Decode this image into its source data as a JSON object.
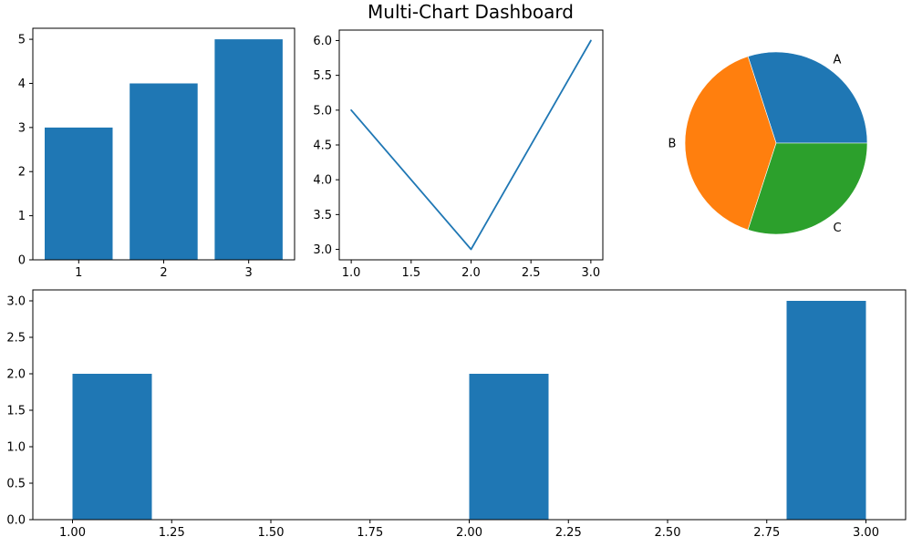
{
  "title": "Multi-Chart Dashboard",
  "colors": {
    "series_blue": "#1f77b4",
    "series_orange": "#ff7f0e",
    "series_green": "#2ca02c",
    "axis": "#000000",
    "background": "#ffffff"
  },
  "chart_data": [
    {
      "id": "bar-chart",
      "type": "bar",
      "categories": [
        1,
        2,
        3
      ],
      "values": [
        3,
        4,
        5
      ],
      "bar_width": 0.8,
      "color": "#1f77b4",
      "xlim": [
        0.46,
        3.54
      ],
      "ylim": [
        0,
        5.25
      ],
      "xticks": {
        "values": [
          1,
          2,
          3
        ],
        "labels": [
          "1",
          "2",
          "3"
        ]
      },
      "yticks": {
        "values": [
          0,
          1,
          2,
          3,
          4,
          5
        ],
        "labels": [
          "0",
          "1",
          "2",
          "3",
          "4",
          "5"
        ]
      },
      "grid": false,
      "title": "",
      "xlabel": "",
      "ylabel": ""
    },
    {
      "id": "line-chart",
      "type": "line",
      "x": [
        1,
        2,
        3
      ],
      "y": [
        5,
        3,
        6
      ],
      "color": "#1f77b4",
      "xlim": [
        0.9,
        3.1
      ],
      "ylim": [
        2.85,
        6.15
      ],
      "xticks": {
        "values": [
          1.0,
          1.5,
          2.0,
          2.5,
          3.0
        ],
        "labels": [
          "1.0",
          "1.5",
          "2.0",
          "2.5",
          "3.0"
        ]
      },
      "yticks": {
        "values": [
          3.0,
          3.5,
          4.0,
          4.5,
          5.0,
          5.5,
          6.0
        ],
        "labels": [
          "3.0",
          "3.5",
          "4.0",
          "4.5",
          "5.0",
          "5.5",
          "6.0"
        ]
      },
      "grid": false,
      "title": "Multi-Chart Dashboard",
      "xlabel": "",
      "ylabel": ""
    },
    {
      "id": "pie-chart",
      "type": "pie",
      "labels": [
        "A",
        "B",
        "C"
      ],
      "values": [
        3,
        4,
        3
      ],
      "percentages": [
        30,
        40,
        30
      ],
      "colors": [
        "#1f77b4",
        "#ff7f0e",
        "#2ca02c"
      ],
      "start_angle": 0,
      "counterclock": true
    },
    {
      "id": "histogram",
      "type": "bar",
      "bins": [
        {
          "x0": 1.0,
          "x1": 1.2,
          "count": 2
        },
        {
          "x0": 2.0,
          "x1": 2.2,
          "count": 2
        },
        {
          "x0": 2.8,
          "x1": 3.0,
          "count": 3
        }
      ],
      "color": "#1f77b4",
      "xlim": [
        0.9,
        3.1
      ],
      "ylim": [
        0,
        3.15
      ],
      "xticks": {
        "values": [
          1.0,
          1.25,
          1.5,
          1.75,
          2.0,
          2.25,
          2.5,
          2.75,
          3.0
        ],
        "labels": [
          "1.00",
          "1.25",
          "1.50",
          "1.75",
          "2.00",
          "2.25",
          "2.50",
          "2.75",
          "3.00"
        ]
      },
      "yticks": {
        "values": [
          0,
          0.5,
          1.0,
          1.5,
          2.0,
          2.5,
          3.0
        ],
        "labels": [
          "0.0",
          "0.5",
          "1.0",
          "1.5",
          "2.0",
          "2.5",
          "3.0"
        ]
      },
      "grid": false,
      "title": "",
      "xlabel": "",
      "ylabel": ""
    }
  ]
}
